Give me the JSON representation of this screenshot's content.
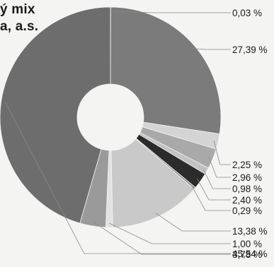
{
  "title_lines": [
    "ý mix",
    "a, a.s."
  ],
  "chart_data": {
    "type": "pie",
    "donut": true,
    "title": "ý mix a, a.s.",
    "slices": [
      {
        "label": "0,03 %",
        "value": 0.03,
        "color": "#6a6a6a"
      },
      {
        "label": "27,39 %",
        "value": 27.39,
        "color": "#7b7b7b"
      },
      {
        "label": "2,25 %",
        "value": 2.25,
        "color": "#d4d4d4"
      },
      {
        "label": "2,96 %",
        "value": 2.96,
        "color": "#a9a9a9"
      },
      {
        "label": "0,98 %",
        "value": 0.98,
        "color": "#c2c2c2"
      },
      {
        "label": "2,40 %",
        "value": 2.4,
        "color": "#2b2b2b"
      },
      {
        "label": "0,29 %",
        "value": 0.29,
        "color": "#8e8e8e"
      },
      {
        "label": "13,38 %",
        "value": 13.38,
        "color": "#c9c9c9"
      },
      {
        "label": "1,00 %",
        "value": 1.0,
        "color": "#e2e2e2"
      },
      {
        "label": "3,78 %",
        "value": 3.78,
        "color": "#9a9a9a"
      },
      {
        "label": "45,54 %",
        "value": 45.54,
        "color": "#6d6d6d"
      }
    ]
  }
}
